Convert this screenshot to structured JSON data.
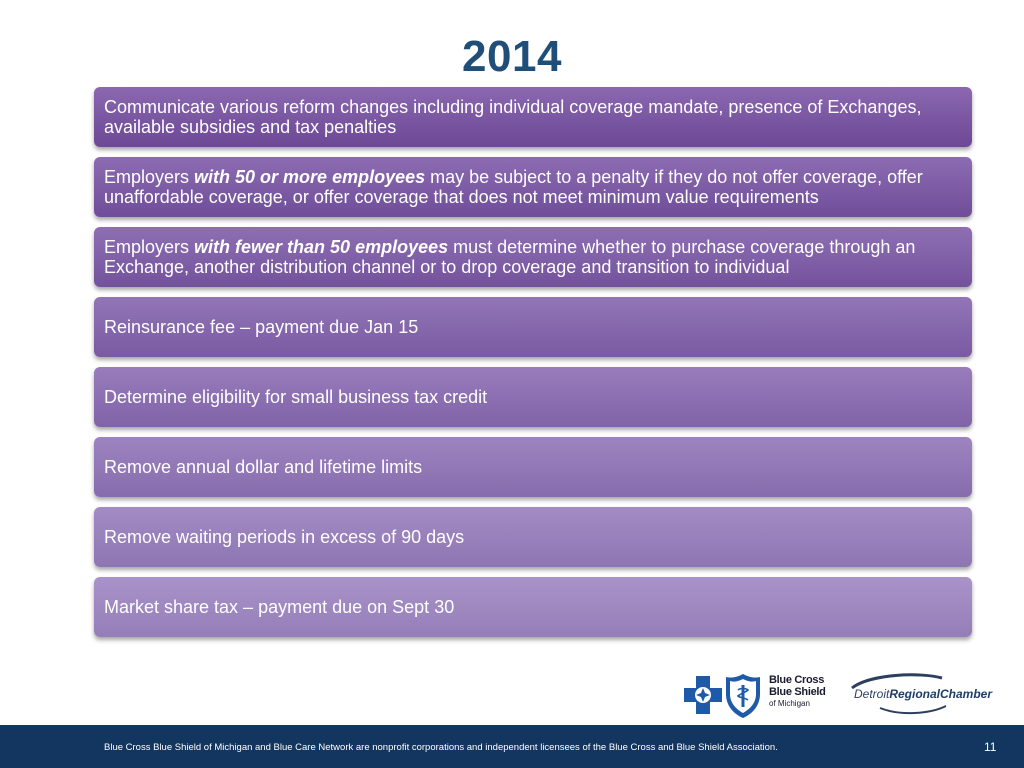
{
  "slide": {
    "title": "2014",
    "items": [
      {
        "pre": "Communicate various reform changes including individual coverage mandate, presence of Exchanges, available subsidies and tax penalties"
      },
      {
        "pre": "Employers ",
        "emphasis": "with 50 or more employees",
        "post": " may be subject to a penalty if they do not offer coverage, offer unaffordable coverage, or offer coverage that does not meet minimum value requirements"
      },
      {
        "pre": "Employers ",
        "emphasis": "with fewer than 50 employees",
        "post": " must determine whether to purchase coverage through an Exchange, another distribution channel or to drop coverage and transition to individual"
      },
      {
        "pre": "Reinsurance fee – payment due Jan 15"
      },
      {
        "pre": "Determine eligibility for small business tax credit"
      },
      {
        "pre": "Remove annual dollar and lifetime limits"
      },
      {
        "pre": "Remove waiting periods in excess of 90 days"
      },
      {
        "pre": "Market share tax – payment due on Sept 30"
      }
    ]
  },
  "logos": {
    "bcbs": {
      "line1": "Blue Cross",
      "line2": "Blue Shield",
      "line3": "of Michigan",
      "cross_icon": "blue-cross-icon",
      "shield_icon": "blue-shield-icon"
    },
    "chamber": {
      "part1": "Detroit",
      "part2": "RegionalChamber",
      "icon": "chamber-swoosh-icon"
    }
  },
  "footer": {
    "disclaimer": "Blue Cross Blue Shield of Michigan and Blue Care Network are nonprofit corporations and independent licensees of the Blue Cross and Blue Shield Association.",
    "page_number": "11"
  },
  "colors": {
    "title": "#1f4e79",
    "footer_bg": "#12365f",
    "box_dark": "#6c4896",
    "box_light": "#a993c9"
  }
}
